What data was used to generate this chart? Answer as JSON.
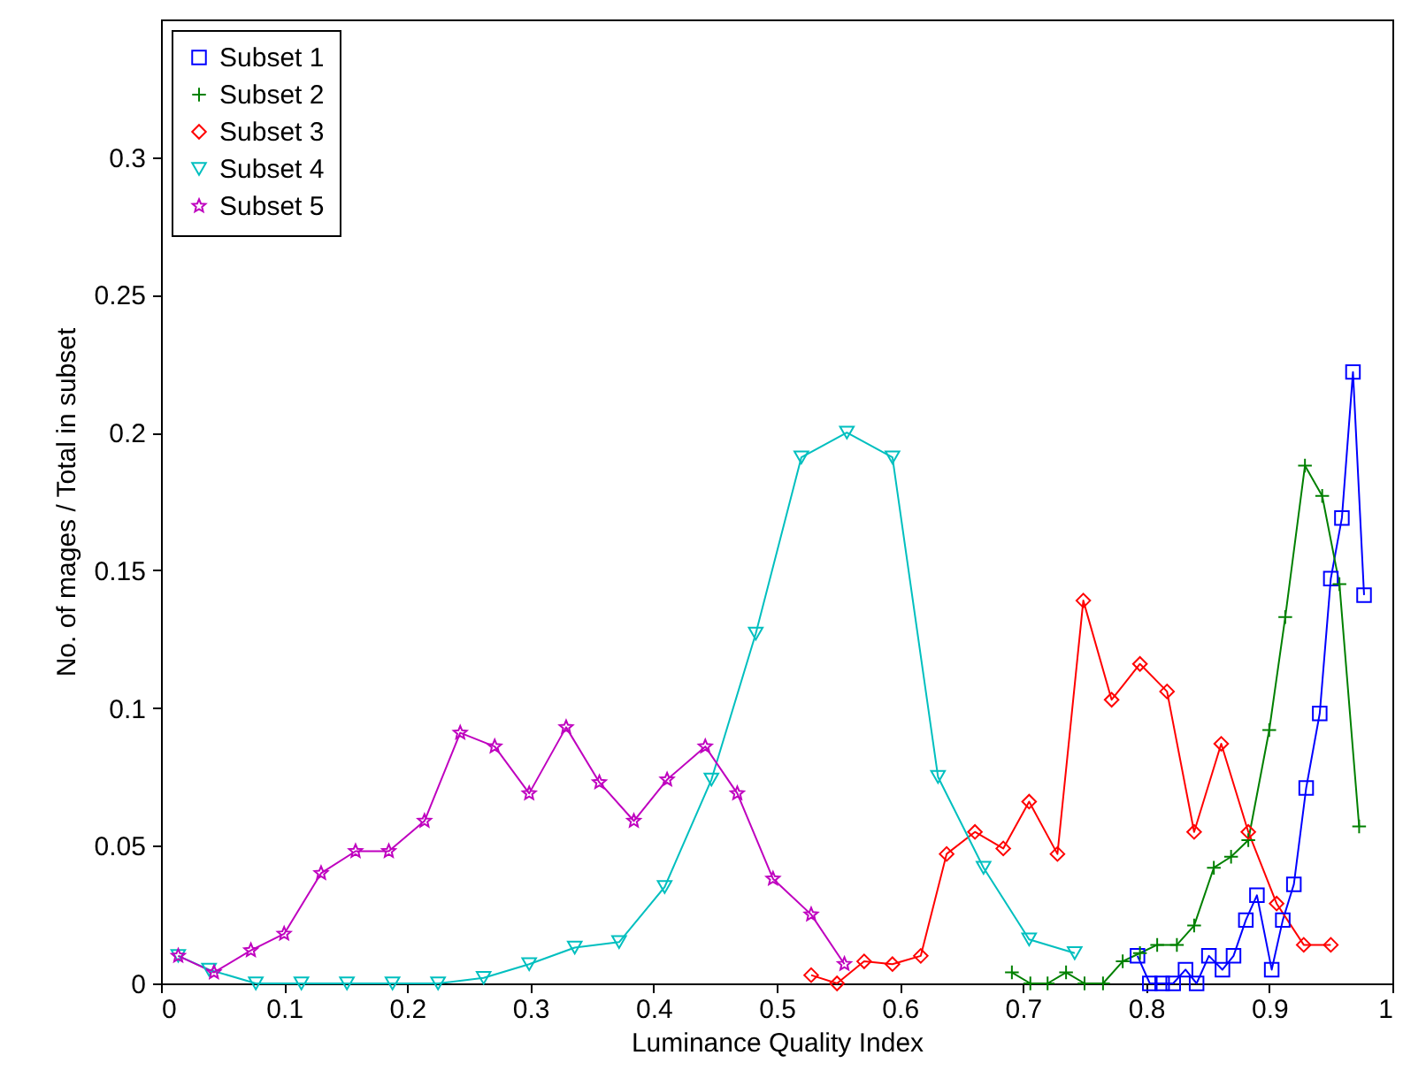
{
  "chart_data": {
    "type": "line",
    "xlabel": "Luminance Quality Index",
    "ylabel": "No. of mages / Total in subset",
    "xlim": [
      0,
      1
    ],
    "xticks": [
      0,
      0.1,
      0.2,
      0.3,
      0.4,
      0.5,
      0.6,
      0.7,
      0.8,
      0.9,
      1
    ],
    "ylim": [
      0,
      0.35
    ],
    "yticks": [
      0,
      0.05,
      0.1,
      0.15,
      0.2,
      0.25,
      0.3
    ],
    "grid": false,
    "legend": "top left",
    "line_style": "solid",
    "series": [
      {
        "name": "Subset 1",
        "color": "#0000ff",
        "marker": "square",
        "x": [
          0.793,
          0.803,
          0.813,
          0.822,
          0.832,
          0.841,
          0.851,
          0.862,
          0.871,
          0.881,
          0.89,
          0.902,
          0.911,
          0.92,
          0.93,
          0.941,
          0.95,
          0.959,
          0.968,
          0.977
        ],
        "values": [
          0.01,
          0,
          0,
          0,
          0.005,
          0,
          0.01,
          0.005,
          0.01,
          0.023,
          0.032,
          0.005,
          0.023,
          0.036,
          0.071,
          0.098,
          0.147,
          0.169,
          0.222,
          0.141
        ]
      },
      {
        "name": "Subset 2",
        "color": "#008000",
        "marker": "cross",
        "x": [
          0.691,
          0.706,
          0.72,
          0.735,
          0.75,
          0.765,
          0.781,
          0.795,
          0.809,
          0.825,
          0.839,
          0.855,
          0.869,
          0.883,
          0.9,
          0.913,
          0.929,
          0.943,
          0.957,
          0.973
        ],
        "values": [
          0.004,
          0,
          0,
          0.004,
          0,
          0,
          0.008,
          0.011,
          0.014,
          0.014,
          0.021,
          0.042,
          0.046,
          0.052,
          0.092,
          0.133,
          0.188,
          0.177,
          0.145,
          0.057
        ]
      },
      {
        "name": "Subset 3",
        "color": "#ff0000",
        "marker": "diamond",
        "x": [
          0.528,
          0.549,
          0.571,
          0.594,
          0.617,
          0.638,
          0.661,
          0.684,
          0.705,
          0.728,
          0.749,
          0.772,
          0.795,
          0.817,
          0.839,
          0.861,
          0.883,
          0.906,
          0.928,
          0.95
        ],
        "values": [
          0.003,
          0,
          0.008,
          0.007,
          0.01,
          0.047,
          0.055,
          0.049,
          0.066,
          0.047,
          0.139,
          0.103,
          0.116,
          0.106,
          0.055,
          0.087,
          0.055,
          0.029,
          0.014,
          0.014
        ]
      },
      {
        "name": "Subset 4",
        "color": "#00bfbf",
        "marker": "triangle",
        "x": [
          0.014,
          0.039,
          0.077,
          0.114,
          0.151,
          0.188,
          0.225,
          0.262,
          0.299,
          0.336,
          0.372,
          0.409,
          0.447,
          0.483,
          0.52,
          0.557,
          0.594,
          0.631,
          0.668,
          0.705,
          0.742
        ],
        "values": [
          0.01,
          0.005,
          0,
          0,
          0,
          0,
          0,
          0.002,
          0.007,
          0.013,
          0.015,
          0.035,
          0.074,
          0.127,
          0.191,
          0.2,
          0.191,
          0.075,
          0.042,
          0.016,
          0.011
        ]
      },
      {
        "name": "Subset 5",
        "color": "#bf00bf",
        "marker": "star",
        "x": [
          0.014,
          0.043,
          0.073,
          0.1,
          0.13,
          0.158,
          0.185,
          0.214,
          0.243,
          0.271,
          0.299,
          0.329,
          0.356,
          0.384,
          0.411,
          0.442,
          0.468,
          0.497,
          0.528,
          0.555
        ],
        "values": [
          0.01,
          0.004,
          0.012,
          0.018,
          0.04,
          0.048,
          0.048,
          0.059,
          0.091,
          0.086,
          0.069,
          0.093,
          0.073,
          0.059,
          0.074,
          0.086,
          0.069,
          0.038,
          0.025,
          0.007
        ]
      }
    ]
  }
}
